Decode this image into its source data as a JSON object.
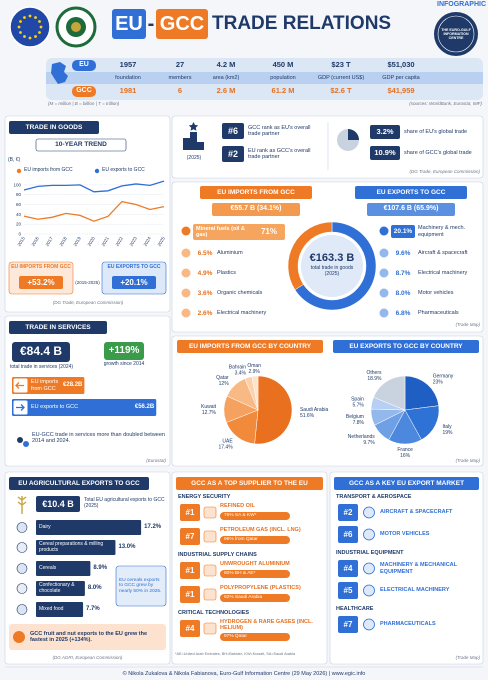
{
  "header": {
    "title_eu": "EU",
    "title_dash": "-",
    "title_gcc": "GCC",
    "title_rest": "TRADE RELATIONS",
    "badge": "INFOGRAPHIC",
    "logo_text": "THE EURO-GULF INFORMATION CENTRE"
  },
  "stats": {
    "columns": [
      "foundation",
      "members",
      "area (km2)",
      "population",
      "GDP (current US$)",
      "GDP per capita"
    ],
    "rows": [
      {
        "label": "EU",
        "values": [
          "1957",
          "27",
          "4.2 M",
          "450 M",
          "$23 T",
          "$51,030"
        ]
      },
      {
        "label": "GCC",
        "values": [
          "1981",
          "6",
          "2.6 M",
          "61.2 M",
          "$2.6 T",
          "$41,959"
        ]
      }
    ],
    "note": "(M = million | B = billion | T = trillion)",
    "source": "(sources: WorldBank, Eurostat, IMF)"
  },
  "goods": {
    "title": "TRADE IN GOODS",
    "cards": [
      {
        "label": "EU IMPORTS FROM GCC",
        "value": "+53.2%"
      },
      {
        "label": "EU EXPORTS TO GCC",
        "value": "+20.1%"
      }
    ],
    "period": "(2015-2025)",
    "source": "(DG Trade, European Commission)"
  },
  "ranks": {
    "items": [
      {
        "rank": "#6",
        "text": "GCC rank as EU's overall trade partner"
      },
      {
        "rank": "#2",
        "text": "EU rank as GCC's overall trade partner"
      }
    ],
    "year": "(2025)",
    "shares": [
      {
        "value": "3.2%",
        "text": "share of EU's global trade"
      },
      {
        "value": "10.9%",
        "text": "share of GCC's global trade"
      }
    ],
    "source": "(DG Trade, European Commission)"
  },
  "products": {
    "imports": [
      {
        "share": "71%",
        "name": "Mineral fuels (oil & gas)"
      },
      {
        "share": "6.5%",
        "name": "Aluminium"
      },
      {
        "share": "4.9%",
        "name": "Plastics"
      },
      {
        "share": "3.6%",
        "name": "Organic chemicals"
      },
      {
        "share": "2.6%",
        "name": "Electrical machinery"
      }
    ],
    "exports": [
      {
        "share": "20.1%",
        "name": "Machinery & mech. equipment"
      },
      {
        "share": "9.6%",
        "name": "Aircraft & spacecraft"
      },
      {
        "share": "8.7%",
        "name": "Electrical machinery"
      },
      {
        "share": "8.0%",
        "name": "Motor vehicles"
      },
      {
        "share": "6.8%",
        "name": "Pharmaceuticals"
      }
    ],
    "source": "(Trade Map)"
  },
  "countries_source": "(Trade Map)",
  "services": {
    "title": "TRADE IN SERVICES",
    "total": "€84.4 B",
    "total_text": "total trade in services (2024)",
    "growth": "+119%",
    "growth_text": "growth since 2014",
    "note": "EU-GCC trade in services more than doubled between 2014 and 2024.",
    "source": "(Eurostat)"
  },
  "agri": {
    "title": "EU AGRICULTURAL EXPORTS TO GCC",
    "total": "€10.4 B",
    "total_text": "Total EU agricultural exports to GCC (2025)",
    "callout": "EU cereals exports to GCC grew by nearly 50% in 2025.",
    "note": "GCC fruit and nut exports to the EU grew the fastest in 2025 (+134%).",
    "source": "(DG AGRI, European Commission)"
  },
  "supplier": {
    "title": "GCC AS A TOP SUPPLIER TO THE EU",
    "sections": [
      {
        "name": "ENERGY SECURITY",
        "items": [
          {
            "rank": "#1",
            "name": "REFINED OIL",
            "share": "75% SA & KW*"
          },
          {
            "rank": "#7",
            "name": "PETROLEUM GAS (INCL. LNG)",
            "share": "96% from Qatar"
          }
        ]
      },
      {
        "name": "INDUSTRIAL SUPPLY CHAINS",
        "items": [
          {
            "rank": "#1",
            "name": "UNWROUGHT ALUMINIUM",
            "share": "80% BH & AE*"
          },
          {
            "rank": "#1",
            "name": "POLYPROPYLENE (PLASTICS)",
            "share": "92% Saudi Arabia"
          }
        ]
      },
      {
        "name": "CRITICAL TECHNOLOGIES",
        "items": [
          {
            "rank": "#4",
            "name": "HYDROGEN & RARE GASES (INCL. HELIUM)",
            "share": "97% Qatar"
          }
        ]
      }
    ],
    "footnote": "*AE=United Arab Emirates, BH=Bahrain, KW=Kuwait, SA=Saudi Arabia"
  },
  "market": {
    "title": "GCC AS A KEY EU EXPORT MARKET",
    "sections": [
      {
        "name": "TRANSPORT & AEROSPACE",
        "items": [
          {
            "rank": "#2",
            "name": "AIRCRAFT & SPACECRAFT"
          },
          {
            "rank": "#6",
            "name": "MOTOR VEHICLES"
          }
        ]
      },
      {
        "name": "INDUSTRIAL EQUIPMENT",
        "items": [
          {
            "rank": "#4",
            "name": "MACHINERY & MECHANICAL EQUIPMENT"
          },
          {
            "rank": "#5",
            "name": "ELECTRICAL MACHINERY"
          }
        ]
      },
      {
        "name": "HEALTHCARE",
        "items": [
          {
            "rank": "#7",
            "name": "PHARMACEUTICALS"
          }
        ]
      }
    ],
    "source": "(Trade Map)"
  },
  "footer": "© Nikola Zukalova & Nikola Fabianova, Euro-Gulf Information Centre (29 May 2026) | www.egic.info",
  "chart_data": [
    {
      "type": "line",
      "title": "10-YEAR TREND",
      "y_label": "(B, €)",
      "categories": [
        "2015",
        "2016",
        "2017",
        "2018",
        "2019",
        "2020",
        "2021",
        "2022",
        "2023",
        "2024",
        "2025"
      ],
      "series": [
        {
          "name": "EU imports from GCC",
          "color": "#ee7a26",
          "values": [
            36.4,
            30,
            34,
            42,
            38,
            26,
            36,
            66,
            60,
            50,
            55.7
          ]
        },
        {
          "name": "EU exports to GCC",
          "color": "#2f6fd6",
          "values": [
            89.6,
            97,
            99,
            99,
            100,
            86,
            88,
            98,
            102,
            99,
            107.6
          ]
        }
      ],
      "ylim": [
        0,
        110
      ],
      "yticks": [
        0,
        20,
        40,
        60,
        80,
        100
      ],
      "grid": true
    },
    {
      "type": "donut",
      "center_label": "€163.3 B",
      "center_text": "total trade in goods (2025)",
      "categories": [
        "EU IMPORTS FROM GCC",
        "EU EXPORTS TO GCC"
      ],
      "values": [
        55.7,
        107.6
      ],
      "value_labels": [
        "€55.7 B (34.1%)",
        "€107.6 B (65.9%)"
      ],
      "colors": [
        "#ee7a26",
        "#2f6fd6"
      ]
    },
    {
      "type": "pie",
      "title": "EU IMPORTS FROM GCC BY COUNTRY",
      "categories": [
        "Saudi Arabia",
        "UAE",
        "Kuwait",
        "Qatar",
        "Bahrain",
        "Oman"
      ],
      "values": [
        51.6,
        17.4,
        12.7,
        12,
        3.4,
        2.9
      ],
      "value_labels": [
        "51.6%",
        "17.4%",
        "12.7%",
        "12%",
        "3.4%",
        "2.9%"
      ],
      "colors": [
        "#e8701e",
        "#f28a3c",
        "#f5a260",
        "#f8b985",
        "#fbd0aa",
        "#fde3cb"
      ]
    },
    {
      "type": "pie",
      "title": "EU EXPORTS TO GCC  BY COUNTRY",
      "categories": [
        "Germany",
        "Italy",
        "France",
        "Netherlands",
        "Belgium",
        "Spain",
        "Others"
      ],
      "values": [
        23,
        19,
        16,
        9.7,
        7.8,
        5.7,
        18.9
      ],
      "value_labels": [
        "23%",
        "19%",
        "16%",
        "9.7%",
        "7.8%",
        "5.7%",
        "18.9%"
      ],
      "colors": [
        "#1f5fc4",
        "#2f72d6",
        "#4c88de",
        "#6f9fe5",
        "#93b8ec",
        "#b7cff2",
        "#c9d3e0"
      ]
    },
    {
      "type": "bar",
      "orientation": "horizontal",
      "categories": [
        "EU imports from GCC",
        "EU exports to GCC"
      ],
      "values": [
        28.2,
        56.2
      ],
      "value_labels": [
        "€28.2B",
        "€56.2B"
      ],
      "colors": [
        "#ee7a26",
        "#2f6fd6"
      ],
      "xlim": [
        0,
        60
      ]
    },
    {
      "type": "bar",
      "orientation": "horizontal",
      "categories": [
        "Dairy",
        "Cereal preparations & milling products",
        "Cereals",
        "Confectionary & chocolate",
        "Mixed food"
      ],
      "values": [
        17.2,
        13.0,
        8.9,
        8.0,
        7.7
      ],
      "value_labels": [
        "17.2%",
        "13.0%",
        "8.9%",
        "8.0%",
        "7.7%"
      ],
      "colors": [
        "#1f3a68"
      ],
      "xlim": [
        0,
        18
      ]
    }
  ]
}
